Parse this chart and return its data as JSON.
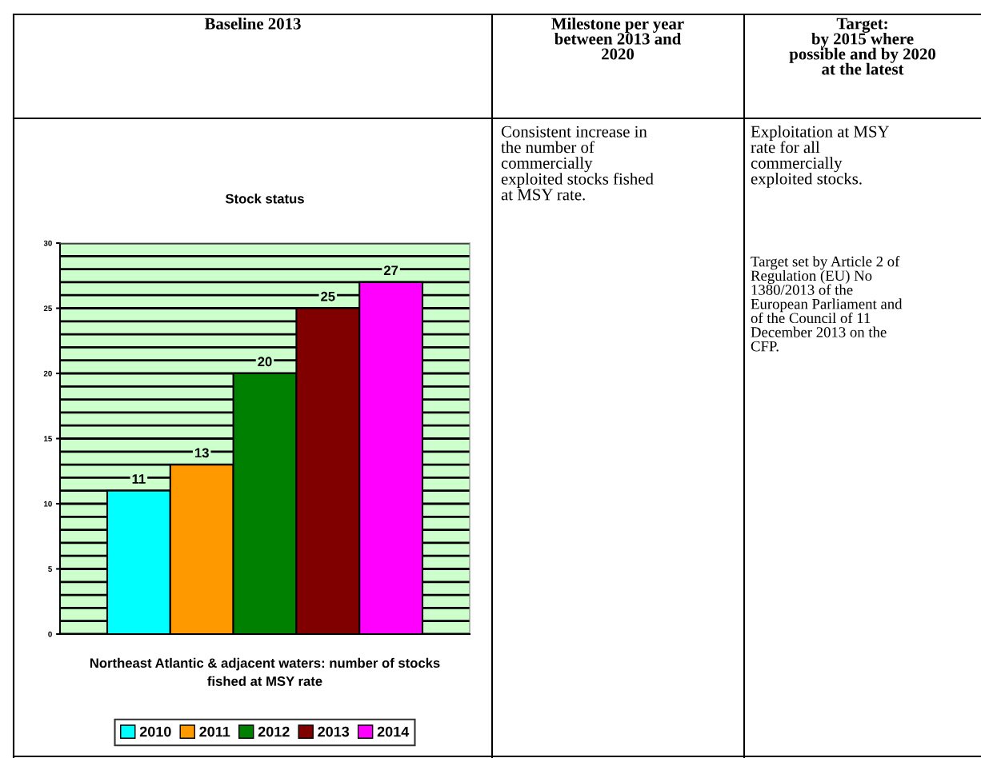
{
  "chart_data": [
    {
      "type": "other",
      "annotations": [
        "Baseline 2013",
        "Milestone per year\nbetween 2013 and\n2020",
        "Target:\nby 2015 where\npossible and by 2020\nat the latest",
        "Consistent increase in\nthe number of\ncommercially\nexploited stocks fished\nat MSY rate.",
        "Exploitation at MSY\nrate for all\ncommercially\nexploited stocks.",
        "Target set by Article 2 of\nRegulation (EU) No\n1380/2013 of the\nEuropean Parliament and\nof the Council of 11\nDecember 2013 on the\nCFP."
      ]
    },
    {
      "type": "bar",
      "title": "Stock status",
      "xlabel": "Northeast Atlantic & adjacent waters: number of stocks\nfished at MSY rate",
      "categories": [
        null
      ],
      "series": [
        {
          "name": "2010",
          "color": "#00ffff",
          "values": [
            11
          ]
        },
        {
          "name": "2011",
          "color": "#ff9900",
          "values": [
            13
          ]
        },
        {
          "name": "2012",
          "color": "#008000",
          "values": [
            20
          ]
        },
        {
          "name": "2013",
          "color": "#800000",
          "values": [
            25
          ]
        },
        {
          "name": "2014",
          "color": "#ff00ff",
          "values": [
            27
          ]
        }
      ],
      "ylim": [
        0,
        30
      ],
      "yticks": [
        0,
        {
          "value": 1,
          "label": null
        },
        {
          "value": 2,
          "label": null
        },
        {
          "value": 3,
          "label": null
        },
        {
          "value": 4,
          "label": null
        },
        5,
        {
          "value": 6,
          "label": null
        },
        {
          "value": 7,
          "label": null
        },
        {
          "value": 8,
          "label": null
        },
        {
          "value": 9,
          "label": null
        },
        10,
        {
          "value": 11,
          "label": null
        },
        {
          "value": 12,
          "label": null
        },
        {
          "value": 13,
          "label": null
        },
        {
          "value": 14,
          "label": null
        },
        15,
        {
          "value": 16,
          "label": null
        },
        {
          "value": 17,
          "label": null
        },
        {
          "value": 18,
          "label": null
        },
        {
          "value": 19,
          "label": null
        },
        20,
        {
          "value": 21,
          "label": null
        },
        {
          "value": 22,
          "label": null
        },
        {
          "value": 23,
          "label": null
        },
        {
          "value": 24,
          "label": null
        },
        25,
        {
          "value": 26,
          "label": null
        },
        {
          "value": 27,
          "label": null
        },
        {
          "value": 28,
          "label": null
        },
        {
          "value": 29,
          "label": null
        },
        30
      ],
      "grid": "y",
      "data_labels": true,
      "legend": "bottom"
    }
  ]
}
